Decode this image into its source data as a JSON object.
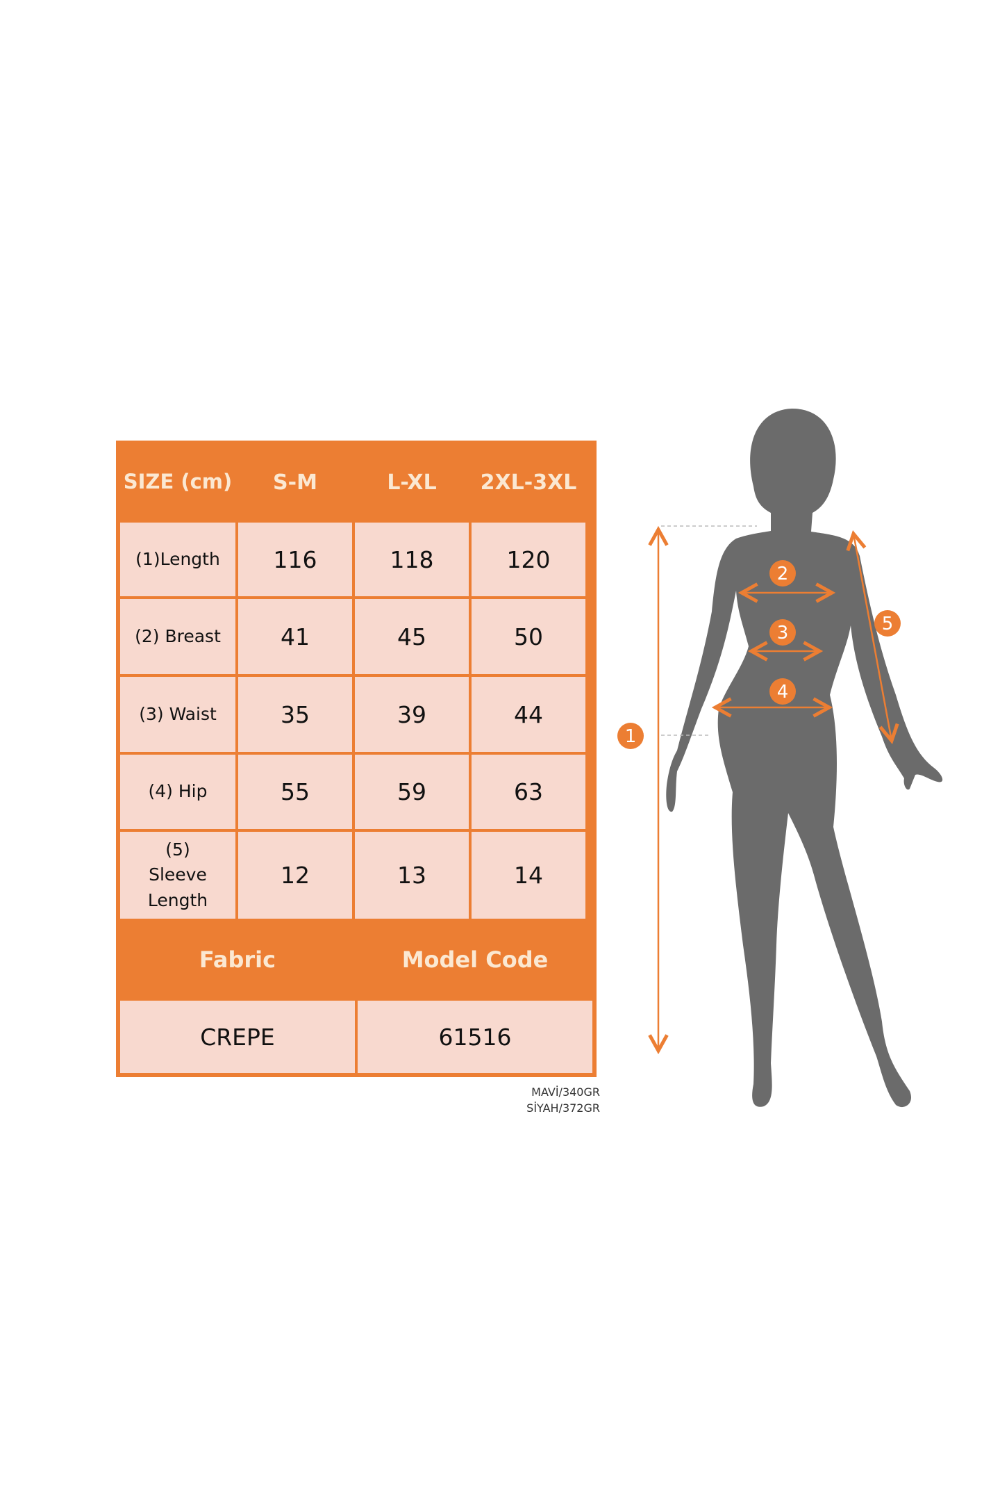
{
  "table": {
    "header": [
      "SIZE (cm)",
      "S-M",
      "L-XL",
      "2XL-3XL"
    ],
    "rows": [
      {
        "label": "(1)Length",
        "values": [
          "116",
          "118",
          "120"
        ]
      },
      {
        "label": "(2) Breast",
        "values": [
          "41",
          "45",
          "50"
        ]
      },
      {
        "label": "(3) Waist",
        "values": [
          "35",
          "39",
          "44"
        ]
      },
      {
        "label": "(4) Hip",
        "values": [
          "55",
          "59",
          "63"
        ]
      },
      {
        "label": "(5) Sleeve Length",
        "values": [
          "12",
          "13",
          "14"
        ]
      }
    ],
    "footer_header": [
      "Fabric",
      "Model Code"
    ],
    "footer_values": [
      "CREPE",
      "61516"
    ]
  },
  "weights": [
    "MAVİ/340GR",
    "SİYAH/372GR"
  ],
  "figure": {
    "markers": [
      "1",
      "2",
      "3",
      "4",
      "5"
    ],
    "colors": {
      "accent": "#ec7e33",
      "silhouette": "#6b6b6b",
      "cell": "#f8d9cf"
    }
  }
}
